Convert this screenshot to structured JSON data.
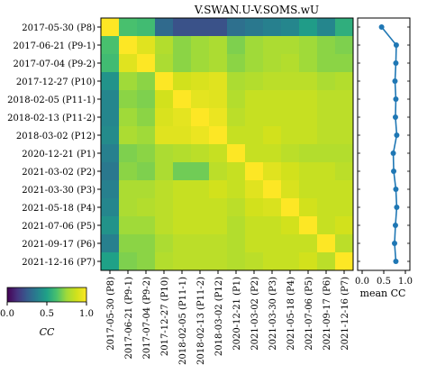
{
  "chart_data": [
    {
      "type": "heatmap",
      "title": "V.SWAN.U-V.SOMS.wU",
      "categories": [
        "2017-05-30 (P8)",
        "2017-06-21 (P9-1)",
        "2017-07-04 (P9-2)",
        "2017-12-27 (P10)",
        "2018-02-05 (P11-1)",
        "2018-02-13 (P11-2)",
        "2018-03-02 (P12)",
        "2020-12-21 (P1)",
        "2021-03-02 (P2)",
        "2021-03-30 (P3)",
        "2021-05-18 (P4)",
        "2021-07-06 (P5)",
        "2021-09-17 (P6)",
        "2021-12-16 (P7)"
      ],
      "values": [
        [
          1.0,
          0.62,
          0.6,
          0.3,
          0.22,
          0.22,
          0.22,
          0.32,
          0.35,
          0.38,
          0.4,
          0.48,
          0.4,
          0.55
        ],
        [
          0.62,
          1.0,
          0.92,
          0.8,
          0.72,
          0.75,
          0.78,
          0.7,
          0.75,
          0.78,
          0.78,
          0.75,
          0.72,
          0.7
        ],
        [
          0.6,
          0.92,
          1.0,
          0.78,
          0.72,
          0.75,
          0.78,
          0.72,
          0.75,
          0.78,
          0.8,
          0.75,
          0.72,
          0.72
        ],
        [
          0.45,
          0.75,
          0.72,
          1.0,
          0.88,
          0.9,
          0.92,
          0.78,
          0.8,
          0.82,
          0.82,
          0.82,
          0.78,
          0.8
        ],
        [
          0.4,
          0.72,
          0.7,
          0.88,
          1.0,
          0.93,
          0.92,
          0.8,
          0.85,
          0.85,
          0.85,
          0.85,
          0.82,
          0.82
        ],
        [
          0.4,
          0.75,
          0.72,
          0.9,
          0.93,
          1.0,
          0.95,
          0.82,
          0.85,
          0.85,
          0.85,
          0.85,
          0.82,
          0.82
        ],
        [
          0.42,
          0.78,
          0.75,
          0.92,
          0.92,
          0.95,
          1.0,
          0.85,
          0.85,
          0.88,
          0.85,
          0.85,
          0.82,
          0.82
        ],
        [
          0.38,
          0.7,
          0.72,
          0.78,
          0.8,
          0.82,
          0.85,
          1.0,
          0.85,
          0.85,
          0.82,
          0.8,
          0.8,
          0.8
        ],
        [
          0.35,
          0.72,
          0.7,
          0.78,
          0.68,
          0.68,
          0.82,
          0.85,
          1.0,
          0.92,
          0.88,
          0.85,
          0.85,
          0.82
        ],
        [
          0.38,
          0.78,
          0.78,
          0.82,
          0.85,
          0.85,
          0.88,
          0.85,
          0.92,
          1.0,
          0.9,
          0.85,
          0.85,
          0.85
        ],
        [
          0.4,
          0.78,
          0.8,
          0.82,
          0.85,
          0.85,
          0.85,
          0.82,
          0.88,
          0.9,
          1.0,
          0.88,
          0.85,
          0.85
        ],
        [
          0.45,
          0.75,
          0.75,
          0.82,
          0.85,
          0.85,
          0.85,
          0.8,
          0.85,
          0.85,
          0.88,
          1.0,
          0.85,
          0.88
        ],
        [
          0.38,
          0.72,
          0.72,
          0.78,
          0.82,
          0.82,
          0.82,
          0.8,
          0.85,
          0.85,
          0.85,
          0.85,
          1.0,
          0.82
        ],
        [
          0.5,
          0.7,
          0.72,
          0.8,
          0.82,
          0.82,
          0.82,
          0.8,
          0.82,
          0.85,
          0.85,
          0.88,
          0.82,
          1.0
        ]
      ]
    },
    {
      "type": "line",
      "xlabel": "mean CC",
      "xlim": [
        0.0,
        1.0
      ],
      "xticks": [
        "0.0",
        "0.5",
        "1.0"
      ],
      "categories": [
        "2017-05-30 (P8)",
        "2017-06-21 (P9-1)",
        "2017-07-04 (P9-2)",
        "2017-12-27 (P10)",
        "2018-02-05 (P11-1)",
        "2018-02-13 (P11-2)",
        "2018-03-02 (P12)",
        "2020-12-21 (P1)",
        "2021-03-02 (P2)",
        "2021-03-30 (P3)",
        "2021-05-18 (P4)",
        "2021-07-06 (P5)",
        "2021-09-17 (P6)",
        "2021-12-16 (P7)"
      ],
      "values": [
        0.45,
        0.79,
        0.78,
        0.76,
        0.78,
        0.77,
        0.8,
        0.72,
        0.73,
        0.78,
        0.8,
        0.77,
        0.75,
        0.78
      ],
      "color": "#1f77b4"
    }
  ],
  "colorbar": {
    "label": "CC",
    "ticks": [
      "0.0",
      "0.5",
      "1.0"
    ],
    "range": [
      0.0,
      1.0
    ]
  }
}
